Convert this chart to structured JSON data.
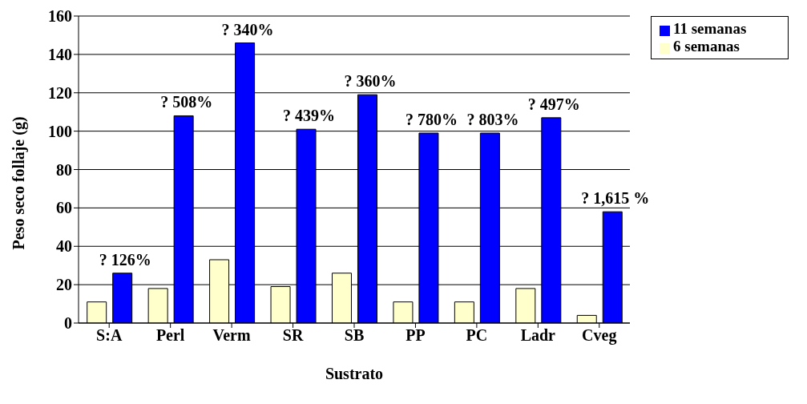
{
  "chart_data": {
    "type": "bar",
    "xlabel": "Sustrato",
    "ylabel": "Peso seco follaje (g)",
    "categories": [
      "S:A",
      "Perl",
      "Verm",
      "SR",
      "SB",
      "PP",
      "PC",
      "Ladr",
      "Cveg"
    ],
    "series": [
      {
        "name": "6 semanas",
        "color": "#ffffcc",
        "values": [
          11,
          18,
          33,
          19,
          26,
          11,
          11,
          18,
          4
        ]
      },
      {
        "name": "11 semanas",
        "color": "#0000ff",
        "values": [
          26,
          108,
          146,
          101,
          119,
          99,
          99,
          107,
          58
        ]
      }
    ],
    "ylim": [
      0,
      160
    ],
    "yticks": [
      0,
      20,
      40,
      60,
      80,
      100,
      120,
      140,
      160
    ],
    "grid": "y",
    "legend": "top right",
    "annotations": [
      {
        "text": "? 126%",
        "x": "S:A",
        "y": 26
      },
      {
        "text": "? 508%",
        "x": "Perl",
        "y": 108
      },
      {
        "text": "? 340%",
        "x": "Verm",
        "y": 146
      },
      {
        "text": "? 439%",
        "x": "SR",
        "y": 101
      },
      {
        "text": "? 360%",
        "x": "SB",
        "y": 119
      },
      {
        "text": "? 780%",
        "x": "PP",
        "y": 99
      },
      {
        "text": "? 803%",
        "x": "PC",
        "y": 99
      },
      {
        "text": "? 497%",
        "x": "Ladr",
        "y": 107
      },
      {
        "text": "? 1,615 %",
        "x": "Cveg",
        "y": 58
      }
    ]
  }
}
